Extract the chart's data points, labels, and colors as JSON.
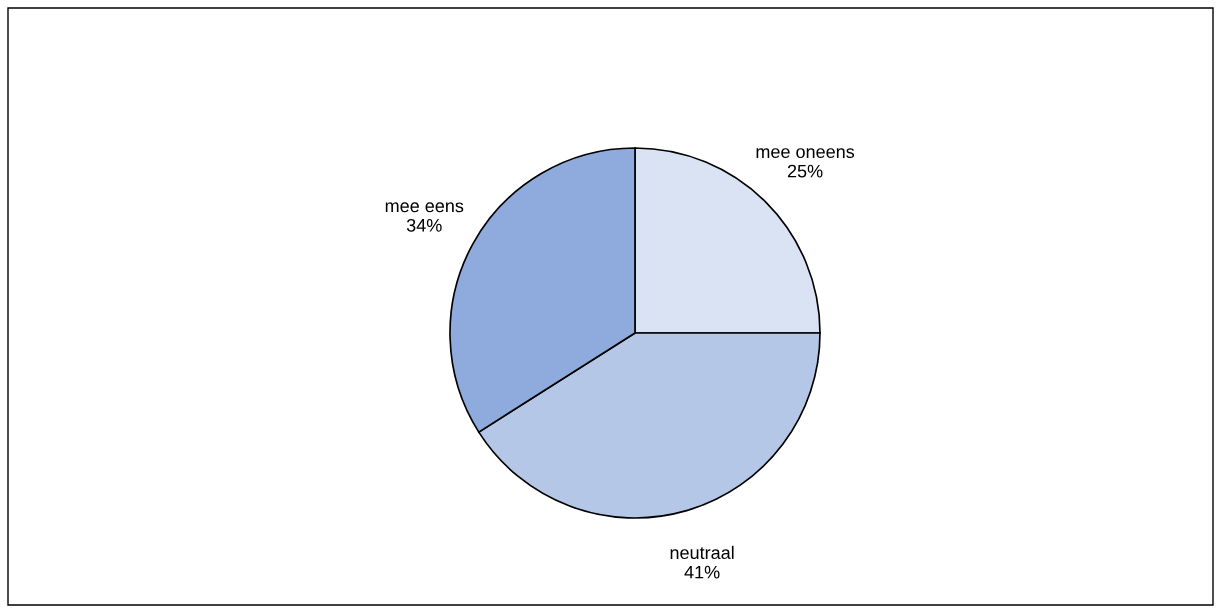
{
  "chart_data": {
    "type": "pie",
    "categories": [
      "mee oneens",
      "neutraal",
      "mee eens"
    ],
    "values": [
      25,
      41,
      34
    ],
    "colors": [
      "#dae3f3",
      "#b4c7e7",
      "#8faadc"
    ],
    "value_labels": [
      "25%",
      "41%",
      "34%"
    ],
    "legend": false
  }
}
